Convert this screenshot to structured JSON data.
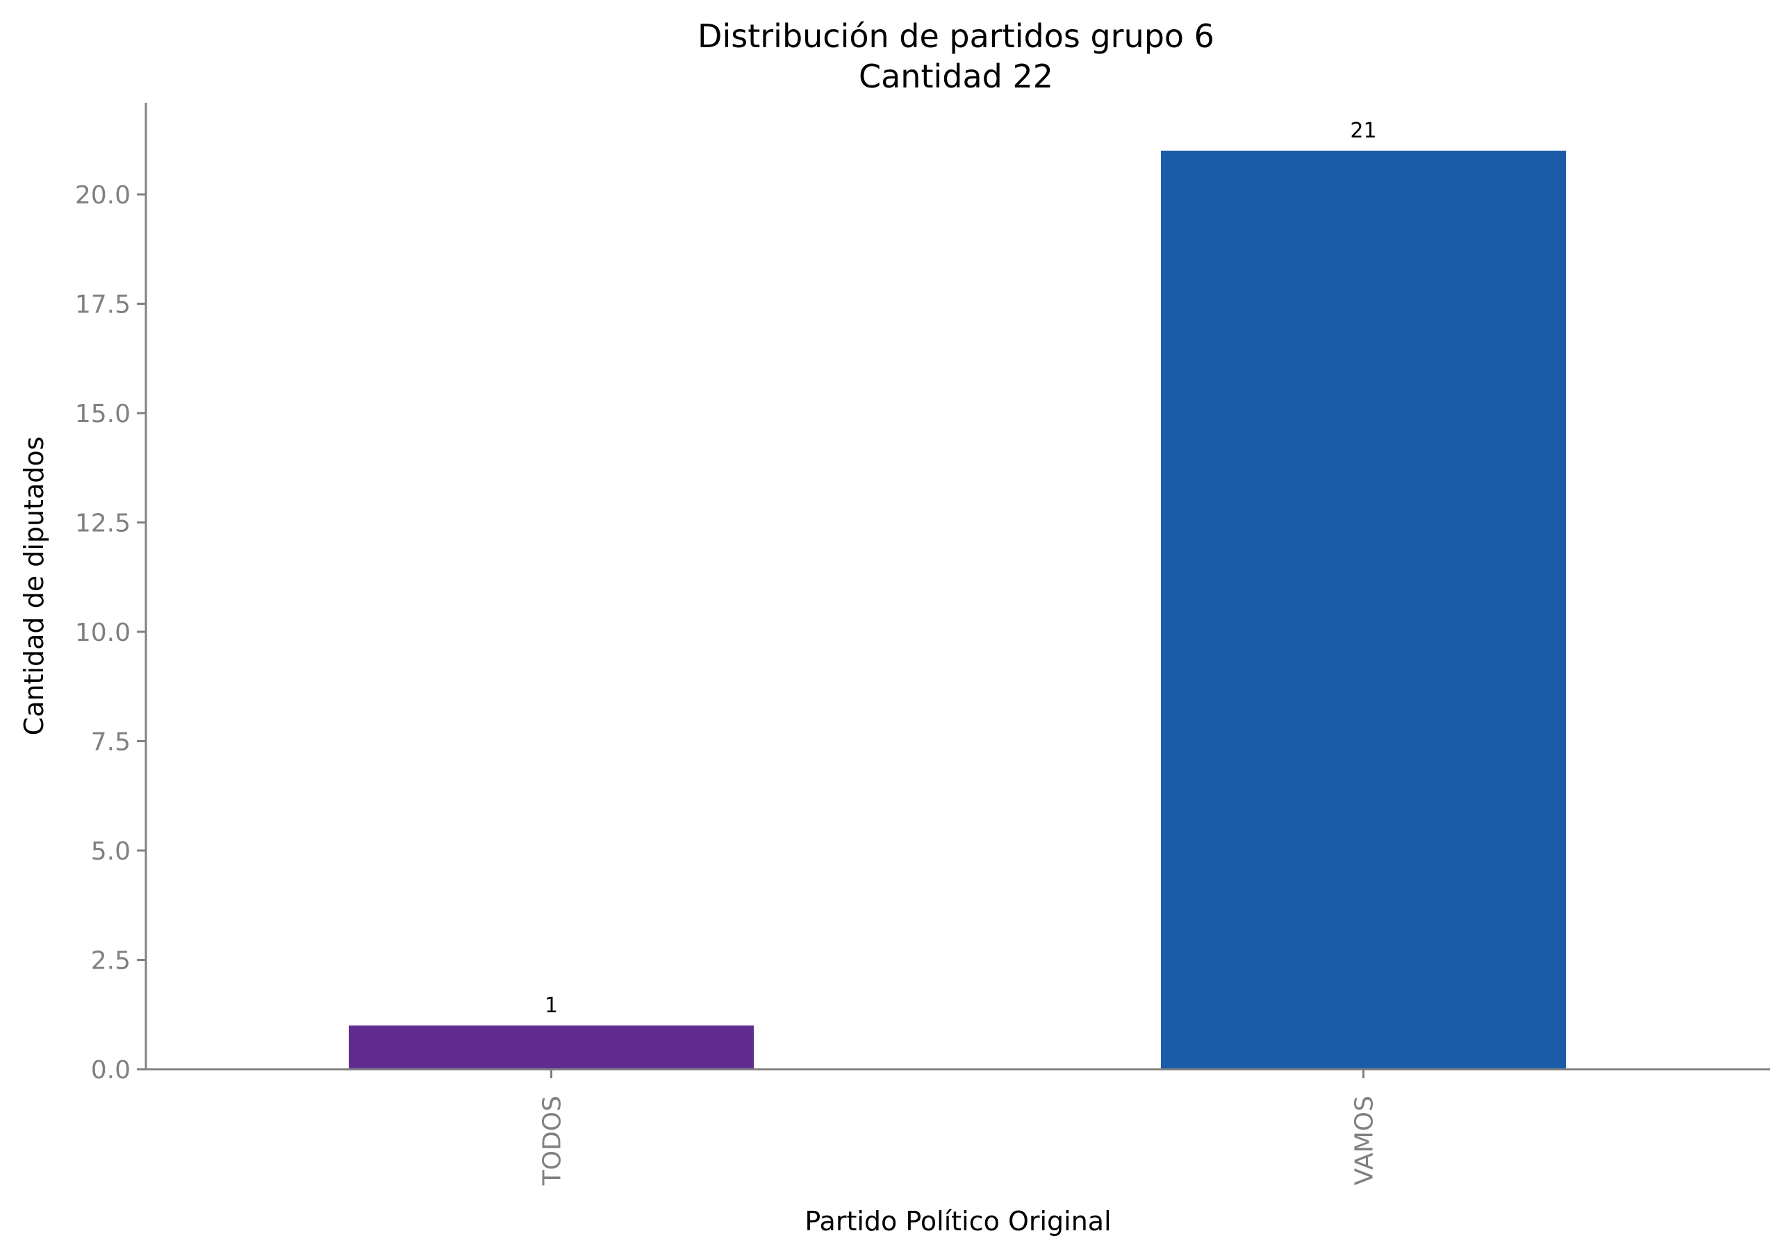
{
  "chart_data": {
    "type": "bar",
    "title": "Distribución de partidos grupo 6",
    "subtitle": "Cantidad 22",
    "xlabel": "Partido Político Original",
    "ylabel": "Cantidad de diputados",
    "categories": [
      "TODOS",
      "VAMOS"
    ],
    "values": [
      1,
      21
    ],
    "data_labels": [
      "1",
      "21"
    ],
    "colors": [
      "#612c8f",
      "#1a5ca8"
    ],
    "ylim": [
      0,
      22.05
    ],
    "yticks": [
      0,
      2.5,
      5,
      7.5,
      10,
      12.5,
      15,
      17.5,
      20
    ],
    "ytick_labels": [
      "0.0",
      "2.5",
      "5.0",
      "7.5",
      "10.0",
      "12.5",
      "15.0",
      "17.5",
      "20.0"
    ],
    "grid": false,
    "legend": false,
    "axis_color": "#808080"
  }
}
